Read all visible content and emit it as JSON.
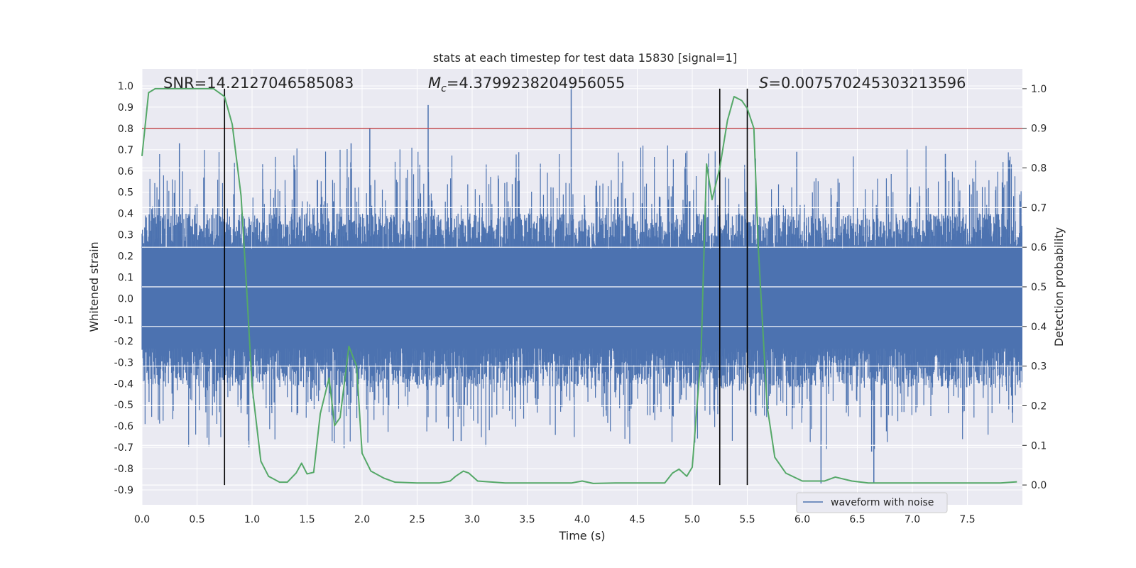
{
  "chart_data": {
    "type": "line",
    "title": "stats at each timestep for test data 15830 [signal=1]",
    "xlabel": "Time (s)",
    "ylabel": "Whitened strain",
    "y2label": "Detection probability",
    "xlim": [
      0.0,
      8.0
    ],
    "ylim": [
      -0.97,
      1.08
    ],
    "y2lim": [
      -0.05,
      1.05
    ],
    "xticks": [
      "0.0",
      "0.5",
      "1.0",
      "1.5",
      "2.0",
      "2.5",
      "3.0",
      "3.5",
      "4.0",
      "4.5",
      "5.0",
      "5.5",
      "6.0",
      "6.5",
      "7.0",
      "7.5"
    ],
    "xtick_values": [
      0.0,
      0.5,
      1.0,
      1.5,
      2.0,
      2.5,
      3.0,
      3.5,
      4.0,
      4.5,
      5.0,
      5.5,
      6.0,
      6.5,
      7.0,
      7.5
    ],
    "yticks": [
      "1.0",
      "0.9",
      "0.8",
      "0.7",
      "0.6",
      "0.5",
      "0.4",
      "0.3",
      "0.2",
      "0.1",
      "0.0",
      "-0.1",
      "-0.2",
      "-0.3",
      "-0.4",
      "-0.5",
      "-0.6",
      "-0.7",
      "-0.8",
      "-0.9"
    ],
    "ytick_values": [
      1.0,
      0.9,
      0.8,
      0.7,
      0.6,
      0.5,
      0.4,
      0.3,
      0.2,
      0.1,
      0.0,
      -0.1,
      -0.2,
      -0.3,
      -0.4,
      -0.5,
      -0.6,
      -0.7,
      -0.8,
      -0.9
    ],
    "y2ticks": [
      "1.0",
      "0.9",
      "0.8",
      "0.7",
      "0.6",
      "0.5",
      "0.4",
      "0.3",
      "0.2",
      "0.1",
      "0.0"
    ],
    "y2tick_values": [
      1.0,
      0.9,
      0.8,
      0.7,
      0.6,
      0.5,
      0.4,
      0.3,
      0.2,
      0.1,
      0.0
    ],
    "annotations": {
      "snr": "SNR=14.2127046585083",
      "mc_symbol": "M",
      "mc_subscript": "c",
      "mc_value": "=4.3799238204956055",
      "s_symbol": "S",
      "s_value": "=0.007570245303213596"
    },
    "threshold_y2": 0.9,
    "vertical_lines_x": [
      0.75,
      5.25,
      5.5
    ],
    "waveform": {
      "name": "waveform with noise",
      "color": "#4c72b0",
      "spikes": [
        {
          "x": 2.6,
          "y": 0.91
        },
        {
          "x": 3.9,
          "y": 1.0
        },
        {
          "x": 0.34,
          "y": 0.73
        },
        {
          "x": 1.9,
          "y": 0.73
        },
        {
          "x": 2.07,
          "y": 0.8
        },
        {
          "x": 5.95,
          "y": 0.69
        },
        {
          "x": 7.3,
          "y": 0.68
        },
        {
          "x": 6.17,
          "y": -0.87
        },
        {
          "x": 6.65,
          "y": -0.87
        },
        {
          "x": 6.63,
          "y": -0.72
        },
        {
          "x": 2.9,
          "y": -0.67
        }
      ]
    },
    "probability": {
      "color": "#55a868",
      "x": [
        0.0,
        0.06,
        0.12,
        0.25,
        0.4,
        0.55,
        0.65,
        0.75,
        0.82,
        0.9,
        0.95,
        1.0,
        1.08,
        1.15,
        1.25,
        1.32,
        1.4,
        1.45,
        1.5,
        1.56,
        1.62,
        1.7,
        1.75,
        1.8,
        1.88,
        1.95,
        2.0,
        2.08,
        2.2,
        2.3,
        2.5,
        2.7,
        2.8,
        2.85,
        2.92,
        2.97,
        3.05,
        3.15,
        3.3,
        3.6,
        3.9,
        4.0,
        4.1,
        4.3,
        4.55,
        4.75,
        4.82,
        4.88,
        4.95,
        5.0,
        5.08,
        5.13,
        5.18,
        5.25,
        5.32,
        5.38,
        5.45,
        5.5,
        5.56,
        5.6,
        5.68,
        5.75,
        5.85,
        6.0,
        6.2,
        6.3,
        6.45,
        6.6,
        6.9,
        7.2,
        7.5,
        7.8,
        7.95
      ],
      "y": [
        0.83,
        0.99,
        1.0,
        1.0,
        1.0,
        1.0,
        1.0,
        0.98,
        0.91,
        0.73,
        0.5,
        0.25,
        0.06,
        0.022,
        0.007,
        0.007,
        0.03,
        0.055,
        0.028,
        0.032,
        0.18,
        0.27,
        0.15,
        0.17,
        0.35,
        0.3,
        0.08,
        0.035,
        0.017,
        0.007,
        0.005,
        0.005,
        0.01,
        0.022,
        0.035,
        0.03,
        0.01,
        0.008,
        0.005,
        0.005,
        0.005,
        0.01,
        0.004,
        0.005,
        0.005,
        0.005,
        0.03,
        0.04,
        0.022,
        0.045,
        0.33,
        0.81,
        0.72,
        0.8,
        0.92,
        0.98,
        0.97,
        0.95,
        0.9,
        0.6,
        0.2,
        0.07,
        0.03,
        0.01,
        0.01,
        0.02,
        0.01,
        0.005,
        0.005,
        0.005,
        0.005,
        0.005,
        0.008
      ]
    },
    "legend_placement": "bottom-right",
    "grid": true
  }
}
